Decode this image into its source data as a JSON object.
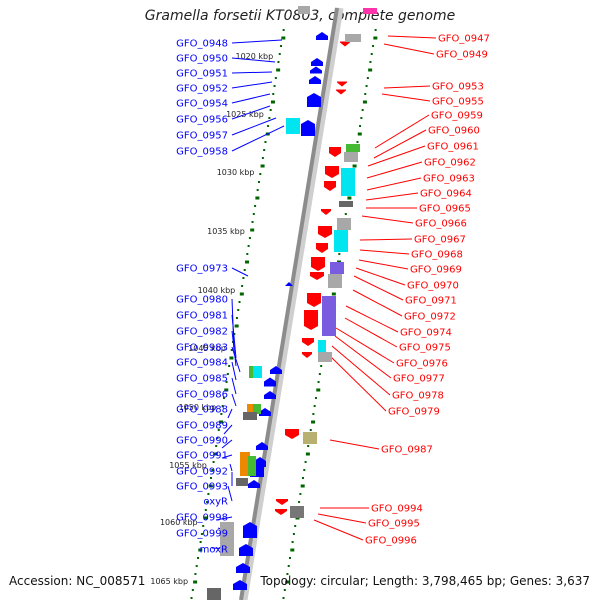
{
  "title": "Gramella forsetii KT0803, complete genome",
  "footer": {
    "accession": "Accession: NC_008571",
    "stats": "Topology: circular; Length: 3,798,465 bp; Genes: 3,637"
  },
  "colors": {
    "forward": "#0000ff",
    "reverse": "#ff0000",
    "backbone": "#999999",
    "ticks": "#006600",
    "cds_cyan": "#00e5f0",
    "cds_purple": "#7a5ce0",
    "cds_gray": "#a8a8a8",
    "cds_green": "#44bb33",
    "cds_orange": "#ee8800",
    "cds_khaki": "#b8b070"
  },
  "kbp_ticks": [
    "1020 kbp",
    "1025 kbp",
    "1030 kbp",
    "1035 kbp",
    "1040 kbp",
    "1045 kbp",
    "1050 kbp",
    "1055 kbp",
    "1060 kbp",
    "1065 kbp"
  ],
  "left_genes": [
    "GFO_0948",
    "GFO_0950",
    "GFO_0951",
    "GFO_0952",
    "GFO_0954",
    "GFO_0956",
    "GFO_0957",
    "GFO_0958",
    "GFO_0973",
    "GFO_0980",
    "GFO_0981",
    "GFO_0982",
    "GFO_0983",
    "GFO_0984",
    "GFO_0985",
    "GFO_0986",
    "GFO_0988",
    "GFO_0989",
    "GFO_0990",
    "GFO_0991",
    "GFO_0992",
    "GFO_0993",
    "oxyR",
    "GFO_0998",
    "GFO_0999",
    "moxR"
  ],
  "right_genes": [
    "GFO_0947",
    "GFO_0949",
    "GFO_0953",
    "GFO_0955",
    "GFO_0959",
    "GFO_0960",
    "GFO_0961",
    "GFO_0962",
    "GFO_0963",
    "GFO_0964",
    "GFO_0965",
    "GFO_0966",
    "GFO_0967",
    "GFO_0968",
    "GFO_0969",
    "GFO_0970",
    "GFO_0971",
    "GFO_0972",
    "GFO_0974",
    "GFO_0975",
    "GFO_0976",
    "GFO_0977",
    "GFO_0978",
    "GFO_0979",
    "GFO_0987",
    "GFO_0994",
    "GFO_0995",
    "GFO_0996"
  ]
}
